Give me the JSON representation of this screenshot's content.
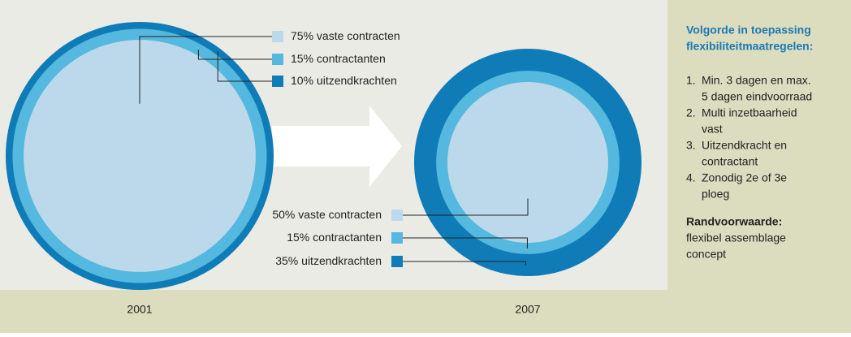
{
  "chart_data": [
    {
      "type": "nested-circle",
      "title": "2001",
      "categories": [
        "vaste contracten",
        "contractanten",
        "uitzendkrachten"
      ],
      "values": [
        75,
        15,
        10
      ],
      "value_labels": [
        "75%",
        "15%",
        "10%"
      ],
      "colors": [
        "#bcd9ec",
        "#55b8de",
        "#0f7cb8"
      ],
      "legend": "right"
    },
    {
      "type": "nested-circle",
      "title": "2007",
      "categories": [
        "vaste contracten",
        "contractanten",
        "uitzendkrachten"
      ],
      "values": [
        50,
        15,
        35
      ],
      "value_labels": [
        "50%",
        "15%",
        "35%"
      ],
      "colors": [
        "#bcd9ec",
        "#55b8de",
        "#0f7cb8"
      ],
      "legend": "left"
    }
  ],
  "sidebar": {
    "title": [
      "Volgorde in toepassing",
      "flexibiliteitmaatregelen:"
    ],
    "items": [
      {
        "number": "1.",
        "lines": [
          "Min. 3 dagen en max.",
          "5 dagen eindvoorraad"
        ]
      },
      {
        "number": "2.",
        "lines": [
          "Multi inzetbaarheid",
          "vast"
        ]
      },
      {
        "number": "3.",
        "lines": [
          "Uitzendkracht en",
          "contractant"
        ]
      },
      {
        "number": "4.",
        "lines": [
          "Zonodig 2e of 3e",
          "ploeg"
        ]
      }
    ],
    "note_title": "Randvoorwaarde:",
    "note": [
      "flexibel assemblage",
      "concept"
    ]
  }
}
